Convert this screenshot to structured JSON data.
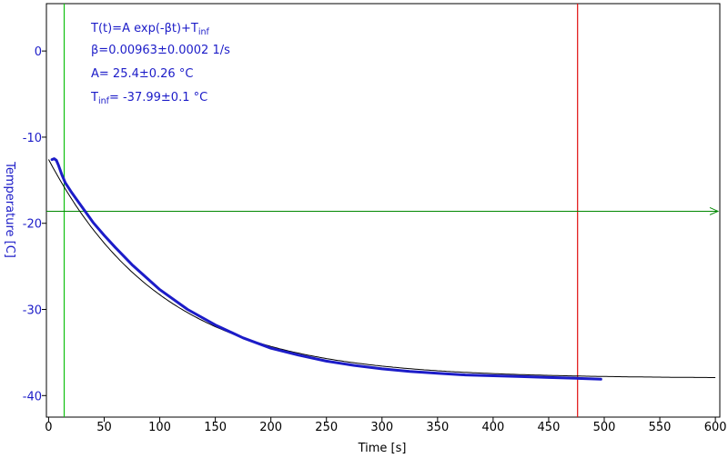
{
  "chart_data": {
    "type": "line",
    "xlabel": "Time [s]",
    "ylabel": "Temperature [C]",
    "xlim": [
      -2,
      604
    ],
    "ylim": [
      -42.5,
      5.5
    ],
    "x_ticks": [
      "0",
      "50",
      "100",
      "150",
      "200",
      "250",
      "300",
      "350",
      "400",
      "450",
      "500",
      "550",
      "600"
    ],
    "y_ticks": [
      "0",
      "-10",
      "-20",
      "-30",
      "-40"
    ],
    "grid": false,
    "colors": {
      "data": "#1c1cc8",
      "fit": "#000000",
      "cursor_green": "#10c010",
      "cursor_red": "#e01010",
      "crosshair": "#008800",
      "tick_labels_y": "#1c1cc8"
    },
    "fit_model": {
      "A": 25.4,
      "beta": 0.00963,
      "T_inf": -37.99,
      "t0": 0
    },
    "series": [
      {
        "x": [
          3,
          5,
          7,
          9,
          12,
          15,
          20,
          25,
          30,
          40,
          50,
          60,
          75,
          100,
          125,
          150,
          175,
          200,
          225,
          250,
          275,
          300,
          325,
          350,
          375,
          400,
          425,
          450,
          475,
          497
        ],
        "y": [
          -12.6,
          -12.5,
          -12.7,
          -13.3,
          -14.4,
          -15.3,
          -16.3,
          -17.2,
          -18.1,
          -19.9,
          -21.4,
          -22.8,
          -24.8,
          -27.7,
          -30.0,
          -31.8,
          -33.3,
          -34.5,
          -35.3,
          -36.0,
          -36.5,
          -36.9,
          -37.2,
          -37.4,
          -37.6,
          -37.7,
          -37.8,
          -37.9,
          -38.0,
          -38.1
        ]
      }
    ],
    "fit_range": [
      0,
      600
    ],
    "markers": {
      "cursor_green_x": 14,
      "cursor_red_x": 476,
      "hline_y": -18.6
    },
    "annotation": {
      "line1_main": "T(t)=A exp(-βt)+T",
      "line1_sub": "inf",
      "line2": "β=0.00963±0.0002 1/s",
      "line3": "A= 25.4±0.26 °C",
      "line4_prefix": "T",
      "line4_sub": "inf",
      "line4_rest": "= -37.99±0.1 °C"
    }
  }
}
